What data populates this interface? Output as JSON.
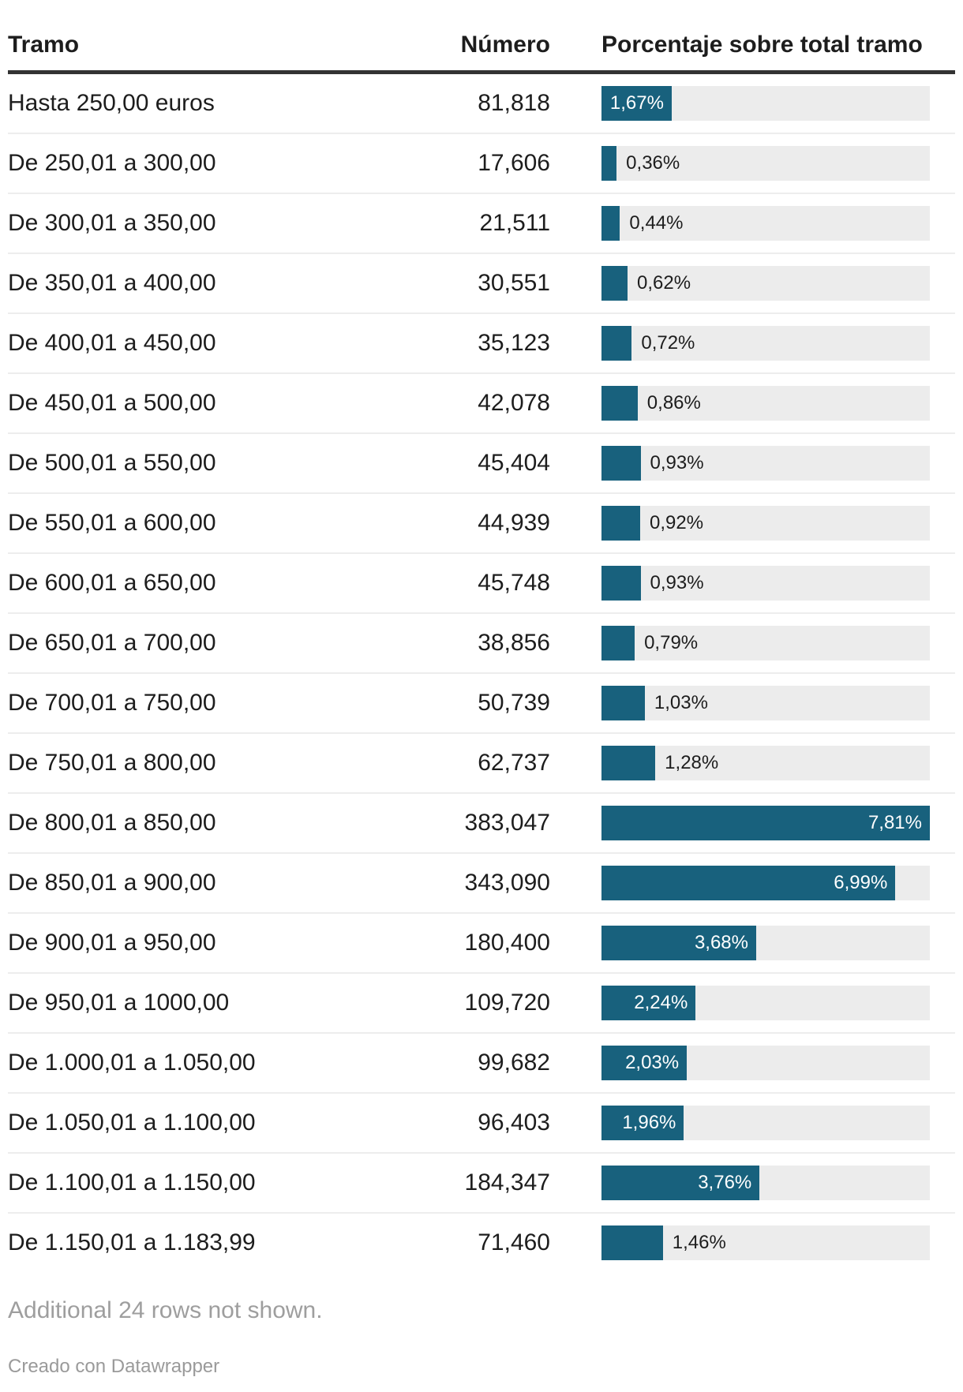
{
  "table": {
    "columns": [
      "Tramo",
      "Número",
      "Porcentaje sobre total tramo"
    ],
    "rows": [
      {
        "tramo": "Hasta 250,00 euros",
        "numero": "81,818",
        "pct_label": "1,67%",
        "pct": 1.67,
        "label_inside": true
      },
      {
        "tramo": "De 250,01 a 300,00",
        "numero": "17,606",
        "pct_label": "0,36%",
        "pct": 0.36,
        "label_inside": false
      },
      {
        "tramo": "De 300,01 a 350,00",
        "numero": "21,511",
        "pct_label": "0,44%",
        "pct": 0.44,
        "label_inside": false
      },
      {
        "tramo": "De 350,01 a 400,00",
        "numero": "30,551",
        "pct_label": "0,62%",
        "pct": 0.62,
        "label_inside": false
      },
      {
        "tramo": "De 400,01 a 450,00",
        "numero": "35,123",
        "pct_label": "0,72%",
        "pct": 0.72,
        "label_inside": false
      },
      {
        "tramo": "De 450,01 a 500,00",
        "numero": "42,078",
        "pct_label": "0,86%",
        "pct": 0.86,
        "label_inside": false
      },
      {
        "tramo": "De 500,01 a 550,00",
        "numero": "45,404",
        "pct_label": "0,93%",
        "pct": 0.93,
        "label_inside": false
      },
      {
        "tramo": "De 550,01 a 600,00",
        "numero": "44,939",
        "pct_label": "0,92%",
        "pct": 0.92,
        "label_inside": false
      },
      {
        "tramo": "De 600,01 a 650,00",
        "numero": "45,748",
        "pct_label": "0,93%",
        "pct": 0.93,
        "label_inside": false
      },
      {
        "tramo": "De 650,01 a 700,00",
        "numero": "38,856",
        "pct_label": "0,79%",
        "pct": 0.79,
        "label_inside": false
      },
      {
        "tramo": "De 700,01 a 750,00",
        "numero": "50,739",
        "pct_label": "1,03%",
        "pct": 1.03,
        "label_inside": false
      },
      {
        "tramo": "De 750,01 a 800,00",
        "numero": "62,737",
        "pct_label": "1,28%",
        "pct": 1.28,
        "label_inside": false
      },
      {
        "tramo": "De 800,01 a 850,00",
        "numero": "383,047",
        "pct_label": "7,81%",
        "pct": 7.81,
        "label_inside": true
      },
      {
        "tramo": "De 850,01 a 900,00",
        "numero": "343,090",
        "pct_label": "6,99%",
        "pct": 6.99,
        "label_inside": true
      },
      {
        "tramo": "De 900,01 a 950,00",
        "numero": "180,400",
        "pct_label": "3,68%",
        "pct": 3.68,
        "label_inside": true
      },
      {
        "tramo": "De 950,01 a 1000,00",
        "numero": "109,720",
        "pct_label": "2,24%",
        "pct": 2.24,
        "label_inside": true
      },
      {
        "tramo": "De 1.000,01 a 1.050,00",
        "numero": "99,682",
        "pct_label": "2,03%",
        "pct": 2.03,
        "label_inside": true
      },
      {
        "tramo": "De 1.050,01 a 1.100,00",
        "numero": "96,403",
        "pct_label": "1,96%",
        "pct": 1.96,
        "label_inside": true
      },
      {
        "tramo": "De 1.100,01 a 1.150,00",
        "numero": "184,347",
        "pct_label": "3,76%",
        "pct": 3.76,
        "label_inside": true
      },
      {
        "tramo": "De 1.150,01 a 1.183,99",
        "numero": "71,460",
        "pct_label": "1,46%",
        "pct": 1.46,
        "label_inside": false
      }
    ]
  },
  "footer": {
    "note": "Additional 24 rows not shown.",
    "credit": "Creado con Datawrapper"
  },
  "colors": {
    "bar": "#18617d",
    "bar_track": "#ececec",
    "header_border": "#333333",
    "row_separator": "#ededed",
    "text": "#1d1d1d",
    "bar_label_inside": "#ffffff",
    "muted_text": "#9e9e9e"
  },
  "chart_data": {
    "type": "table",
    "columns": [
      "Tramo",
      "Número",
      "Porcentaje sobre total tramo"
    ],
    "categories": [
      "Hasta 250,00 euros",
      "De 250,01 a 300,00",
      "De 300,01 a 350,00",
      "De 350,01 a 400,00",
      "De 400,01 a 450,00",
      "De 450,01 a 500,00",
      "De 500,01 a 550,00",
      "De 550,01 a 600,00",
      "De 600,01 a 650,00",
      "De 650,01 a 700,00",
      "De 700,01 a 750,00",
      "De 750,01 a 800,00",
      "De 800,01 a 850,00",
      "De 850,01 a 900,00",
      "De 900,01 a 950,00",
      "De 950,01 a 1000,00",
      "De 1.000,01 a 1.050,00",
      "De 1.050,01 a 1.100,00",
      "De 1.100,01 a 1.150,00",
      "De 1.150,01 a 1.183,99"
    ],
    "series": [
      {
        "name": "Número",
        "values": [
          81818,
          17606,
          21511,
          30551,
          35123,
          42078,
          45404,
          44939,
          45748,
          38856,
          50739,
          62737,
          383047,
          343090,
          180400,
          109720,
          99682,
          96403,
          184347,
          71460
        ]
      },
      {
        "name": "Porcentaje sobre total tramo (%)",
        "values": [
          1.67,
          0.36,
          0.44,
          0.62,
          0.72,
          0.86,
          0.93,
          0.92,
          0.93,
          0.79,
          1.03,
          1.28,
          7.81,
          6.99,
          3.68,
          2.24,
          2.03,
          1.96,
          3.76,
          1.46
        ]
      }
    ],
    "bar_scale_max": 7.81,
    "bar_type": "horizontal-bar-in-table-column",
    "note": "Additional 24 rows not shown."
  }
}
